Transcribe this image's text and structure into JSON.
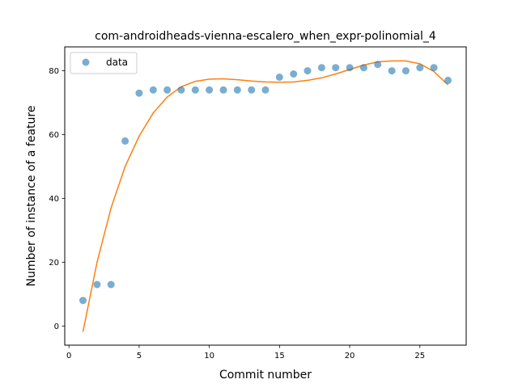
{
  "chart_data": {
    "type": "scatter",
    "title": "com-androidheads-vienna-escalero_when_expr-polinomial_4",
    "xlabel": "Commit number",
    "ylabel": "Number of instance of a feature",
    "xlim": [
      -0.3,
      28.3
    ],
    "ylim": [
      -6,
      87.5
    ],
    "xticks": [
      0,
      5,
      10,
      15,
      20,
      25
    ],
    "yticks": [
      0,
      20,
      40,
      60,
      80
    ],
    "grid": false,
    "legend": {
      "position": "top-left",
      "entries": [
        "data"
      ]
    },
    "series": [
      {
        "name": "data",
        "kind": "scatter",
        "color": "#1f77b4",
        "x": [
          1,
          2,
          3,
          4,
          5,
          6,
          7,
          8,
          9,
          10,
          11,
          12,
          13,
          14,
          15,
          16,
          17,
          18,
          19,
          20,
          21,
          22,
          23,
          24,
          25,
          26,
          27
        ],
        "y": [
          8,
          13,
          13,
          58,
          73,
          74,
          74,
          74,
          74,
          74,
          74,
          74,
          74,
          74,
          78,
          79,
          80,
          81,
          81,
          81,
          81,
          82,
          80,
          80,
          81,
          81,
          77
        ]
      },
      {
        "kind": "line",
        "color": "#ff7f0e",
        "x": [
          1,
          2,
          3,
          4,
          5,
          6,
          7,
          8,
          9,
          10,
          11,
          12,
          13,
          14,
          15,
          16,
          17,
          18,
          19,
          20,
          21,
          22,
          23,
          24,
          25,
          26,
          27
        ],
        "y": [
          -1.8,
          20,
          37,
          50,
          59.5,
          66.8,
          71.8,
          75,
          76.7,
          77.4,
          77.5,
          77.2,
          76.8,
          76.5,
          76.4,
          76.5,
          77,
          77.8,
          79,
          80.4,
          81.8,
          82.8,
          83.1,
          83.1,
          82.2,
          79.8,
          75.6
        ]
      }
    ]
  }
}
